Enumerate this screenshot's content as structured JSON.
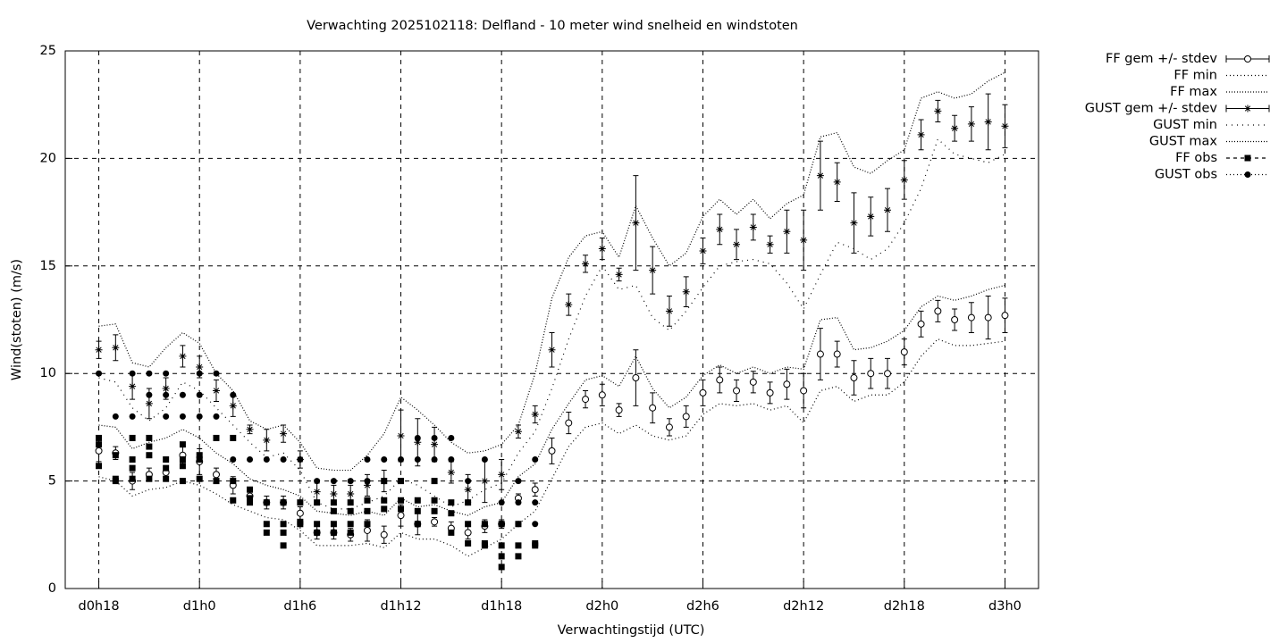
{
  "chart_data": {
    "type": "errorbar",
    "title": "Verwachting 2025102118: Delfland - 10 meter wind snelheid en windstoten",
    "xlabel": "Verwachtingstijd (UTC)",
    "ylabel": "Wind(stoten) (m/s)",
    "xlim": [
      16,
      74
    ],
    "ylim": [
      0,
      25
    ],
    "xticks": [
      {
        "value": 18,
        "label": "d0h18"
      },
      {
        "value": 24,
        "label": "d1h0"
      },
      {
        "value": 30,
        "label": "d1h6"
      },
      {
        "value": 36,
        "label": "d1h12"
      },
      {
        "value": 42,
        "label": "d1h18"
      },
      {
        "value": 48,
        "label": "d2h0"
      },
      {
        "value": 54,
        "label": "d2h6"
      },
      {
        "value": 60,
        "label": "d2h12"
      },
      {
        "value": 66,
        "label": "d2h18"
      },
      {
        "value": 72,
        "label": "d3h0"
      }
    ],
    "yticks": [
      0,
      5,
      10,
      15,
      20,
      25
    ],
    "grid": true,
    "legend": "outside-right",
    "x": [
      18,
      19,
      20,
      21,
      22,
      23,
      24,
      25,
      26,
      27,
      28,
      29,
      30,
      31,
      32,
      33,
      34,
      35,
      36,
      37,
      38,
      39,
      40,
      41,
      42,
      43,
      44,
      45,
      46,
      47,
      48,
      49,
      50,
      51,
      52,
      53,
      54,
      55,
      56,
      57,
      58,
      59,
      60,
      61,
      62,
      63,
      64,
      65,
      66,
      67,
      68,
      69,
      70,
      71,
      72
    ],
    "series": [
      {
        "name": "FF gem +/- stdev",
        "color": "#000000",
        "marker": "circle-open",
        "line": false,
        "dash": "none",
        "values": [
          6.4,
          6.3,
          5.0,
          5.3,
          5.4,
          6.2,
          5.9,
          5.3,
          4.8,
          4.3,
          4.0,
          4.0,
          3.5,
          2.6,
          2.6,
          2.5,
          2.7,
          2.5,
          3.4,
          3.0,
          3.1,
          2.8,
          2.6,
          2.9,
          3.0,
          4.2,
          4.6,
          6.4,
          7.7,
          8.8,
          9.0,
          8.3,
          9.8,
          8.4,
          7.5,
          8.0,
          9.1,
          9.7,
          9.2,
          9.6,
          9.1,
          9.5,
          9.2,
          10.9,
          10.9,
          9.8,
          10.0,
          10.0,
          11.0,
          12.3,
          12.9,
          12.5,
          12.6,
          12.6,
          12.7
        ],
        "errors": [
          0.5,
          0.3,
          0.4,
          0.3,
          0.3,
          0.5,
          0.6,
          0.3,
          0.4,
          0.3,
          0.3,
          0.3,
          0.3,
          0.3,
          0.3,
          0.3,
          0.5,
          0.4,
          0.5,
          0.5,
          0.2,
          0.3,
          0.3,
          0.3,
          0.2,
          0.2,
          0.3,
          0.6,
          0.5,
          0.4,
          0.5,
          0.3,
          1.3,
          0.7,
          0.4,
          0.5,
          0.6,
          0.6,
          0.5,
          0.5,
          0.5,
          0.7,
          0.8,
          1.2,
          0.6,
          0.8,
          0.7,
          0.7,
          0.6,
          0.6,
          0.5,
          0.5,
          0.7,
          1.0,
          0.8
        ]
      },
      {
        "name": "FF min",
        "color": "#000000",
        "marker": "none",
        "line": true,
        "dash": "1 3",
        "values": [
          5.2,
          5.0,
          4.3,
          4.6,
          4.7,
          5.0,
          4.8,
          4.4,
          3.9,
          3.6,
          3.3,
          3.2,
          2.7,
          2.0,
          2.0,
          2.0,
          2.1,
          1.9,
          2.6,
          2.3,
          2.3,
          2.0,
          1.5,
          1.9,
          2.3,
          3.0,
          3.6,
          5.1,
          6.6,
          7.5,
          7.7,
          7.2,
          7.6,
          7.1,
          6.9,
          7.1,
          8.1,
          8.6,
          8.5,
          8.6,
          8.3,
          8.5,
          7.7,
          9.2,
          9.4,
          8.7,
          9.0,
          9.0,
          9.6,
          10.8,
          11.6,
          11.3,
          11.3,
          11.4,
          11.5
        ]
      },
      {
        "name": "FF max",
        "color": "#000000",
        "marker": "none",
        "line": true,
        "dash": "1 2",
        "values": [
          7.6,
          7.5,
          6.5,
          6.8,
          7.0,
          7.4,
          7.0,
          6.3,
          5.8,
          5.1,
          4.8,
          4.6,
          4.3,
          3.6,
          3.5,
          3.4,
          3.6,
          3.4,
          4.2,
          3.8,
          3.9,
          3.6,
          3.4,
          3.8,
          4.0,
          5.2,
          5.8,
          7.4,
          8.6,
          9.7,
          9.9,
          9.4,
          10.8,
          9.3,
          8.4,
          8.9,
          9.9,
          10.4,
          10.0,
          10.3,
          10.0,
          10.3,
          10.2,
          12.5,
          12.6,
          11.1,
          11.2,
          11.5,
          12.0,
          13.1,
          13.6,
          13.4,
          13.6,
          13.9,
          14.1
        ]
      },
      {
        "name": "GUST gem +/- stdev",
        "color": "#000000",
        "marker": "star",
        "line": false,
        "dash": "none",
        "values": [
          11.1,
          11.2,
          9.4,
          8.6,
          9.3,
          10.8,
          10.3,
          9.2,
          8.5,
          7.4,
          6.9,
          7.2,
          6.0,
          4.5,
          4.4,
          4.4,
          4.8,
          5.0,
          7.1,
          6.8,
          6.7,
          5.4,
          4.6,
          5.0,
          5.3,
          7.3,
          8.1,
          11.1,
          13.2,
          15.1,
          15.8,
          14.6,
          17.0,
          14.8,
          12.9,
          13.8,
          15.7,
          16.7,
          16.0,
          16.8,
          16.0,
          16.6,
          16.2,
          19.2,
          18.9,
          17.0,
          17.3,
          17.6,
          19.0,
          21.1,
          22.2,
          21.4,
          21.6,
          21.7,
          21.5
        ],
        "errors": [
          0.4,
          0.6,
          0.6,
          0.7,
          0.5,
          0.5,
          0.5,
          0.5,
          0.5,
          0.2,
          0.5,
          0.4,
          0.4,
          0.4,
          0.4,
          0.4,
          0.5,
          0.5,
          1.2,
          1.1,
          0.8,
          0.5,
          0.7,
          1.0,
          0.7,
          0.3,
          0.4,
          0.8,
          0.5,
          0.4,
          0.5,
          0.3,
          2.2,
          1.1,
          0.7,
          0.7,
          0.6,
          0.7,
          0.7,
          0.6,
          0.4,
          1.0,
          1.4,
          1.6,
          0.9,
          1.4,
          0.9,
          1.0,
          0.9,
          0.7,
          0.5,
          0.6,
          0.8,
          1.3,
          1.0
        ]
      },
      {
        "name": "GUST min",
        "color": "#000000",
        "marker": "none",
        "line": true,
        "dash": "1 5",
        "values": [
          9.8,
          9.6,
          8.4,
          7.8,
          8.4,
          9.6,
          9.2,
          8.4,
          7.6,
          6.8,
          6.1,
          6.3,
          5.5,
          4.0,
          3.7,
          3.7,
          4.0,
          4.3,
          5.1,
          4.8,
          4.3,
          3.8,
          4.1,
          4.6,
          4.9,
          6.3,
          7.3,
          9.3,
          11.6,
          13.6,
          15.0,
          13.9,
          14.1,
          12.6,
          12.0,
          12.9,
          14.0,
          15.0,
          15.2,
          15.3,
          15.1,
          14.2,
          13.0,
          14.6,
          16.1,
          15.8,
          15.3,
          15.8,
          17.0,
          18.6,
          20.9,
          20.2,
          20.0,
          19.8,
          20.2
        ]
      },
      {
        "name": "GUST max",
        "color": "#000000",
        "marker": "none",
        "line": true,
        "dash": "1 2",
        "values": [
          12.2,
          12.3,
          10.5,
          10.3,
          11.2,
          11.9,
          11.4,
          10.0,
          9.2,
          7.8,
          7.4,
          7.6,
          6.8,
          5.6,
          5.5,
          5.5,
          6.2,
          7.2,
          8.9,
          8.3,
          7.6,
          6.8,
          6.3,
          6.4,
          6.7,
          7.6,
          10.0,
          13.5,
          15.4,
          16.4,
          16.6,
          15.4,
          17.8,
          16.3,
          15.0,
          15.6,
          17.3,
          18.1,
          17.4,
          18.1,
          17.2,
          17.9,
          18.3,
          21.0,
          21.2,
          19.6,
          19.3,
          19.9,
          20.4,
          22.8,
          23.1,
          22.8,
          23.0,
          23.6,
          24.0
        ]
      },
      {
        "name": "FF obs",
        "color": "#000000",
        "marker": "square",
        "line": false,
        "dash": "4 4",
        "x": [
          18,
          18,
          18,
          19,
          19,
          19,
          20,
          20,
          20,
          20,
          21,
          21,
          21,
          21,
          22,
          22,
          22,
          23,
          23,
          23,
          23,
          24,
          24,
          24,
          25,
          25,
          26,
          26,
          26,
          27,
          27,
          27,
          28,
          28,
          28,
          29,
          29,
          29,
          29,
          30,
          30,
          30,
          31,
          31,
          31,
          32,
          32,
          32,
          32,
          33,
          33,
          33,
          33,
          34,
          34,
          34,
          35,
          35,
          35,
          36,
          36,
          36,
          37,
          37,
          37,
          38,
          38,
          38,
          39,
          39,
          39,
          40,
          40,
          40,
          41,
          41,
          41,
          42,
          42,
          42,
          42,
          43,
          43,
          43,
          44,
          44
        ],
        "values": [
          7.0,
          6.7,
          5.7,
          6.2,
          5.1,
          5.0,
          7.0,
          6.0,
          5.6,
          5.1,
          7.0,
          6.6,
          6.2,
          5.1,
          6.0,
          5.6,
          5.1,
          6.7,
          6.0,
          5.7,
          5.0,
          6.2,
          6.0,
          5.1,
          7.0,
          5.0,
          7.0,
          5.0,
          4.1,
          4.6,
          4.2,
          4.0,
          4.0,
          3.0,
          2.6,
          4.0,
          3.0,
          2.6,
          2.0,
          4.0,
          3.1,
          3.0,
          4.0,
          3.0,
          2.6,
          4.0,
          3.6,
          3.0,
          2.6,
          4.0,
          3.6,
          3.0,
          2.6,
          4.1,
          3.6,
          3.0,
          5.0,
          4.1,
          3.7,
          5.0,
          4.1,
          3.7,
          4.1,
          3.6,
          3.0,
          5.0,
          4.1,
          3.6,
          4.0,
          3.5,
          2.6,
          4.0,
          3.0,
          2.1,
          3.0,
          2.1,
          2.0,
          3.0,
          2.0,
          1.5,
          1.0,
          3.0,
          2.0,
          1.5,
          2.1,
          2.0
        ]
      },
      {
        "name": "GUST obs",
        "color": "#000000",
        "marker": "dot",
        "line": false,
        "dash": "1 3",
        "x": [
          18,
          19,
          20,
          20,
          21,
          21,
          22,
          22,
          22,
          23,
          23,
          24,
          24,
          24,
          25,
          25,
          26,
          26,
          27,
          28,
          29,
          30,
          31,
          32,
          33,
          34,
          34,
          35,
          36,
          37,
          37,
          38,
          38,
          39,
          39,
          40,
          40,
          41,
          41,
          42,
          42,
          43,
          43,
          43,
          44,
          44,
          44
        ],
        "values": [
          10,
          8,
          10,
          8,
          10,
          9,
          10,
          9,
          8,
          9,
          8,
          10,
          9,
          8,
          10,
          8,
          9,
          6,
          6,
          6,
          6,
          6,
          5,
          5,
          5,
          6,
          5,
          6,
          6,
          7,
          6,
          7,
          6,
          7,
          6,
          5,
          4,
          6,
          3,
          4,
          3,
          5,
          4,
          3,
          6,
          4,
          3
        ]
      }
    ]
  }
}
